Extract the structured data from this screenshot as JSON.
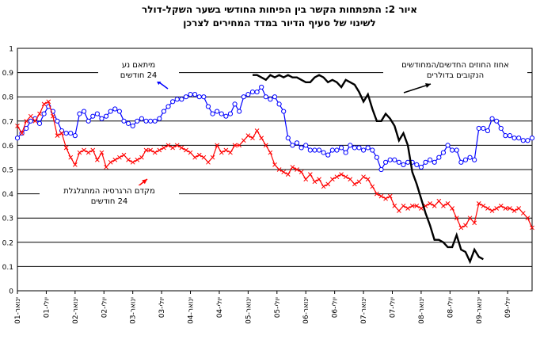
{
  "title_lines": [
    "איור 2: התפתחות הקשר בין הפיחות החודשי בשער השקל-דולר",
    "לשינוי של סעיף הדיור במדד המחירים לצרכן"
  ],
  "chart_data": {
    "type": "line",
    "title": "איור 2: התפתחות הקשר בין הפיחות החודשי בשער השקל-דולר לשינוי של סעיף הדיור במדד המחירים לצרכן",
    "ylim": [
      0,
      1
    ],
    "yticks": [
      "0",
      "0.1",
      "0.2",
      "0.3",
      "0.4",
      "0.5",
      "0.6",
      "0.7",
      "0.8",
      "0.9",
      "1"
    ],
    "grid": "horizontal",
    "x_tick_labels": [
      "ינואר-01",
      "יולי-01",
      "ינואר-02",
      "יולי-02",
      "ינואר-03",
      "יולי-03",
      "ינואר-04",
      "יולי-04",
      "ינואר-05",
      "יולי-05",
      "ינואר-06",
      "יולי-06",
      "ינואר-07",
      "יולי-07",
      "ינואר-08",
      "יולי-08",
      "ינואר-09",
      "יולי-09"
    ],
    "series": [
      {
        "name": "מיתאם נע 24 חודשים",
        "color": "#0000ff",
        "marker": "circle",
        "start_index": 0,
        "values": [
          0.63,
          0.65,
          0.67,
          0.7,
          0.71,
          0.69,
          0.73,
          0.76,
          0.74,
          0.7,
          0.66,
          0.65,
          0.65,
          0.64,
          0.73,
          0.74,
          0.7,
          0.72,
          0.73,
          0.71,
          0.72,
          0.74,
          0.75,
          0.74,
          0.7,
          0.69,
          0.68,
          0.7,
          0.71,
          0.7,
          0.7,
          0.7,
          0.71,
          0.74,
          0.76,
          0.78,
          0.79,
          0.79,
          0.8,
          0.81,
          0.81,
          0.8,
          0.8,
          0.76,
          0.73,
          0.74,
          0.73,
          0.72,
          0.73,
          0.77,
          0.74,
          0.8,
          0.81,
          0.82,
          0.82,
          0.84,
          0.8,
          0.79,
          0.8,
          0.77,
          0.74,
          0.63,
          0.6,
          0.61,
          0.59,
          0.6,
          0.58,
          0.58,
          0.58,
          0.57,
          0.56,
          0.58,
          0.58,
          0.59,
          0.57,
          0.6,
          0.59,
          0.59,
          0.58,
          0.59,
          0.58,
          0.55,
          0.5,
          0.53,
          0.54,
          0.54,
          0.53,
          0.52,
          0.53,
          0.53,
          0.52,
          0.51,
          0.53,
          0.54,
          0.53,
          0.55,
          0.57,
          0.6,
          0.58,
          0.58,
          0.53,
          0.54,
          0.55,
          0.54,
          0.67,
          0.67,
          0.66,
          0.71,
          0.7,
          0.67,
          0.64,
          0.64,
          0.63,
          0.63,
          0.62,
          0.62,
          0.63
        ]
      },
      {
        "name": "מקדם הרגרסיה המתגלגלת 24 חודשים",
        "color": "#ff0000",
        "marker": "x",
        "start_index": 0,
        "values": [
          0.68,
          0.65,
          0.7,
          0.72,
          0.7,
          0.73,
          0.77,
          0.78,
          0.72,
          0.64,
          0.65,
          0.59,
          0.55,
          0.52,
          0.57,
          0.58,
          0.57,
          0.58,
          0.54,
          0.57,
          0.51,
          0.53,
          0.54,
          0.55,
          0.56,
          0.54,
          0.53,
          0.54,
          0.55,
          0.58,
          0.58,
          0.57,
          0.58,
          0.59,
          0.6,
          0.59,
          0.6,
          0.59,
          0.58,
          0.57,
          0.55,
          0.56,
          0.55,
          0.53,
          0.55,
          0.6,
          0.57,
          0.58,
          0.57,
          0.6,
          0.6,
          0.62,
          0.64,
          0.63,
          0.66,
          0.63,
          0.6,
          0.57,
          0.52,
          0.5,
          0.49,
          0.48,
          0.51,
          0.5,
          0.49,
          0.46,
          0.48,
          0.45,
          0.46,
          0.43,
          0.44,
          0.46,
          0.47,
          0.48,
          0.47,
          0.46,
          0.44,
          0.45,
          0.47,
          0.46,
          0.43,
          0.4,
          0.39,
          0.38,
          0.39,
          0.35,
          0.33,
          0.35,
          0.34,
          0.35,
          0.35,
          0.34,
          0.35,
          0.36,
          0.35,
          0.37,
          0.35,
          0.36,
          0.34,
          0.3,
          0.26,
          0.27,
          0.3,
          0.28,
          0.36,
          0.35,
          0.34,
          0.33,
          0.34,
          0.35,
          0.34,
          0.34,
          0.33,
          0.34,
          0.32,
          0.3,
          0.26
        ]
      },
      {
        "name": "אחוז החוזים החדשים/המחודשים הנקובים בדולרים",
        "color": "#000000",
        "marker": "none",
        "start_index": 53,
        "values": [
          0.89,
          0.89,
          0.88,
          0.87,
          0.89,
          0.88,
          0.89,
          0.88,
          0.89,
          0.88,
          0.88,
          0.87,
          0.86,
          0.86,
          0.88,
          0.89,
          0.88,
          0.86,
          0.87,
          0.86,
          0.84,
          0.87,
          0.86,
          0.85,
          0.82,
          0.78,
          0.81,
          0.75,
          0.7,
          0.7,
          0.73,
          0.71,
          0.68,
          0.62,
          0.65,
          0.6,
          0.49,
          0.44,
          0.38,
          0.32,
          0.27,
          0.21,
          0.21,
          0.2,
          0.18,
          0.18,
          0.23,
          0.17,
          0.16,
          0.12,
          0.17,
          0.14,
          0.13
        ]
      }
    ]
  },
  "annotations": {
    "corr": [
      "מיתאם נע",
      "24 חודשים"
    ],
    "reg": [
      "מקדם הרגרסיה המתגלגלת",
      "24 חודשים"
    ],
    "pct": [
      "אחוז החוזים החדשים/המחודשים",
      "הנקובים בדולרים"
    ]
  }
}
